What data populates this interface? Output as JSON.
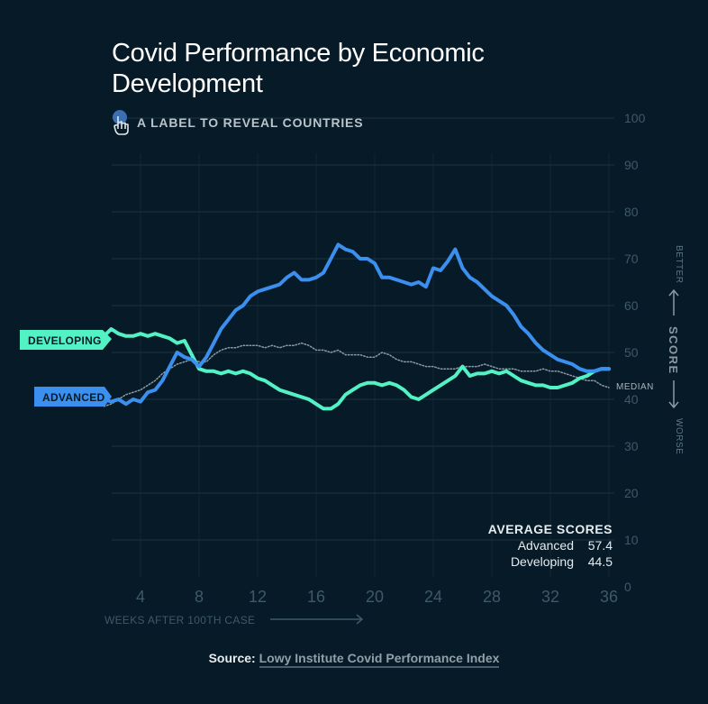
{
  "title": "Covid Performance by Economic Development",
  "hint": {
    "text": "A LABEL TO REVEAL COUNTRIES",
    "icon": "pointer-hand-icon"
  },
  "source": {
    "label": "Source:",
    "link_text": "Lowy Institute Covid Performance Index"
  },
  "colors": {
    "background": "#061a27",
    "advanced": "#3b8fef",
    "developing": "#52f2c5",
    "median": "#8a9aa4",
    "grid": "#1c3442",
    "axis_text": "#3f5968"
  },
  "chart_data": {
    "type": "line",
    "title": "Covid Performance by Economic Development",
    "xlabel": "WEEKS AFTER 100TH CASE",
    "ylabel": "SCORE",
    "y_direction_labels": {
      "up": "BETTER",
      "down": "WORSE"
    },
    "xlim": [
      1.5,
      36
    ],
    "ylim": [
      0,
      100
    ],
    "x_ticks": [
      4,
      8,
      12,
      16,
      20,
      24,
      28,
      32,
      36
    ],
    "y_ticks": [
      0,
      10,
      20,
      30,
      40,
      50,
      60,
      70,
      80,
      90,
      100
    ],
    "grid": true,
    "legend": "left",
    "series": [
      {
        "name": "ADVANCED",
        "key": "advanced",
        "x": [
          1.5,
          2,
          2.5,
          3,
          3.5,
          4,
          4.5,
          5,
          5.5,
          6,
          6.5,
          7,
          7.5,
          8,
          8.5,
          9,
          9.5,
          10,
          10.5,
          11,
          11.5,
          12,
          12.5,
          13,
          13.5,
          14,
          14.5,
          15,
          15.5,
          16,
          16.5,
          17,
          17.5,
          18,
          18.5,
          19,
          19.5,
          20,
          20.5,
          21,
          21.5,
          22,
          22.5,
          23,
          23.5,
          24,
          24.5,
          25,
          25.5,
          26,
          26.5,
          27,
          27.5,
          28,
          28.5,
          29,
          29.5,
          30,
          30.5,
          31,
          31.5,
          32,
          32.5,
          33,
          33.5,
          34,
          34.5,
          35,
          35.5,
          36
        ],
        "y": [
          40,
          39.5,
          40,
          39,
          40,
          39.5,
          41.5,
          42,
          44,
          47,
          50,
          49,
          48.5,
          47,
          49,
          52,
          55,
          57,
          59,
          60,
          62,
          63,
          63.5,
          64,
          64.5,
          66,
          67,
          65.5,
          65.5,
          66,
          67,
          70,
          73,
          72,
          71.5,
          70,
          70,
          69,
          66,
          66,
          65.5,
          65,
          64.5,
          65,
          64,
          68,
          67.5,
          69.5,
          72,
          68,
          66,
          65,
          63.5,
          62,
          61,
          60,
          58,
          55.5,
          54,
          52,
          50.5,
          49.5,
          48.5,
          48,
          47.5,
          46.5,
          46,
          46,
          46.5,
          46.5
        ]
      },
      {
        "name": "DEVELOPING",
        "key": "developing",
        "x": [
          1.5,
          2,
          2.5,
          3,
          3.5,
          4,
          4.5,
          5,
          5.5,
          6,
          6.5,
          7,
          7.5,
          8,
          8.5,
          9,
          9.5,
          10,
          10.5,
          11,
          11.5,
          12,
          12.5,
          13,
          13.5,
          14,
          14.5,
          15,
          15.5,
          16,
          16.5,
          17,
          17.5,
          18,
          18.5,
          19,
          19.5,
          20,
          20.5,
          21,
          21.5,
          22,
          22.5,
          23,
          23.5,
          24,
          24.5,
          25,
          25.5,
          26,
          26.5,
          27,
          27.5,
          28,
          28.5,
          29,
          29.5,
          30,
          30.5,
          31,
          31.5,
          32,
          32.5,
          33,
          33.5,
          34,
          34.5,
          35,
          35.5,
          36
        ],
        "y": [
          53.5,
          55,
          54,
          53.5,
          53.5,
          54,
          53.5,
          54,
          53.5,
          53,
          52,
          52.5,
          49.5,
          46.5,
          46,
          46,
          45.5,
          46,
          45.5,
          46,
          45.5,
          44.5,
          44,
          43,
          42,
          41.5,
          41,
          40.5,
          40,
          39,
          38,
          38,
          39,
          41,
          42,
          43,
          43.5,
          43.5,
          43,
          43.5,
          43,
          42,
          40.5,
          40,
          41,
          42,
          43,
          44,
          45,
          47,
          45,
          45.5,
          45.5,
          46,
          45.5,
          46,
          45,
          44,
          43.5,
          43,
          43,
          42.5,
          42.5,
          43,
          43.5,
          44.5,
          45,
          46,
          46.5,
          46.5
        ]
      },
      {
        "name": "MEDIAN",
        "key": "median",
        "x": [
          1.5,
          2,
          2.5,
          3,
          3.5,
          4,
          4.5,
          5,
          5.5,
          6,
          6.5,
          7,
          7.5,
          8,
          8.5,
          9,
          9.5,
          10,
          10.5,
          11,
          11.5,
          12,
          12.5,
          13,
          13.5,
          14,
          14.5,
          15,
          15.5,
          16,
          16.5,
          17,
          17.5,
          18,
          18.5,
          19,
          19.5,
          20,
          20.5,
          21,
          21.5,
          22,
          22.5,
          23,
          23.5,
          24,
          24.5,
          25,
          25.5,
          26,
          26.5,
          27,
          27.5,
          28,
          28.5,
          29,
          29.5,
          30,
          30.5,
          31,
          31.5,
          32,
          32.5,
          33,
          33.5,
          34,
          34.5,
          35,
          35.5,
          36
        ],
        "y": [
          38.5,
          39,
          40,
          41,
          41.5,
          42,
          43,
          44,
          45.5,
          46.5,
          47.5,
          48,
          48.5,
          48,
          48,
          49.5,
          50.5,
          51,
          51,
          51.5,
          51.5,
          51.5,
          51,
          51.5,
          51,
          51.5,
          51.5,
          52,
          51.5,
          50.5,
          50.5,
          50,
          50.5,
          49.5,
          49.5,
          49.5,
          49,
          49,
          50,
          49.5,
          48.5,
          48,
          48,
          47.5,
          47,
          47,
          46.5,
          46.5,
          46.5,
          47,
          47,
          47,
          47.5,
          47,
          46.5,
          46.5,
          46.5,
          46,
          46,
          46,
          46.5,
          46,
          46,
          45.5,
          45,
          44.5,
          44,
          44,
          43,
          42.5
        ]
      }
    ],
    "annotations": {
      "median_label": "MEDIAN",
      "average_title": "AVERAGE SCORES",
      "averages": [
        {
          "label": "Advanced",
          "value": "57.4"
        },
        {
          "label": "Developing",
          "value": "44.5"
        }
      ]
    }
  }
}
